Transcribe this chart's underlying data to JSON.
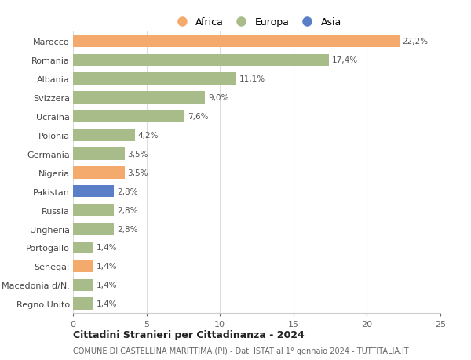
{
  "countries": [
    "Marocco",
    "Romania",
    "Albania",
    "Svizzera",
    "Ucraina",
    "Polonia",
    "Germania",
    "Nigeria",
    "Pakistan",
    "Russia",
    "Ungheria",
    "Portogallo",
    "Senegal",
    "Macedonia d/N.",
    "Regno Unito"
  ],
  "values": [
    22.2,
    17.4,
    11.1,
    9.0,
    7.6,
    4.2,
    3.5,
    3.5,
    2.8,
    2.8,
    2.8,
    1.4,
    1.4,
    1.4,
    1.4
  ],
  "labels": [
    "22,2%",
    "17,4%",
    "11,1%",
    "9,0%",
    "7,6%",
    "4,2%",
    "3,5%",
    "3,5%",
    "2,8%",
    "2,8%",
    "2,8%",
    "1,4%",
    "1,4%",
    "1,4%",
    "1,4%"
  ],
  "continents": [
    "Africa",
    "Europa",
    "Europa",
    "Europa",
    "Europa",
    "Europa",
    "Europa",
    "Africa",
    "Asia",
    "Europa",
    "Europa",
    "Europa",
    "Africa",
    "Europa",
    "Europa"
  ],
  "colors": {
    "Africa": "#F4A96D",
    "Europa": "#A8BC8A",
    "Asia": "#5B7EC9"
  },
  "xlim": [
    0,
    25
  ],
  "xticks": [
    0,
    5,
    10,
    15,
    20,
    25
  ],
  "title": "Cittadini Stranieri per Cittadinanza - 2024",
  "subtitle": "COMUNE DI CASTELLINA MARITTIMA (PI) - Dati ISTAT al 1° gennaio 2024 - TUTTITALIA.IT",
  "background_color": "#ffffff",
  "bar_height": 0.65,
  "grid_color": "#dddddd"
}
